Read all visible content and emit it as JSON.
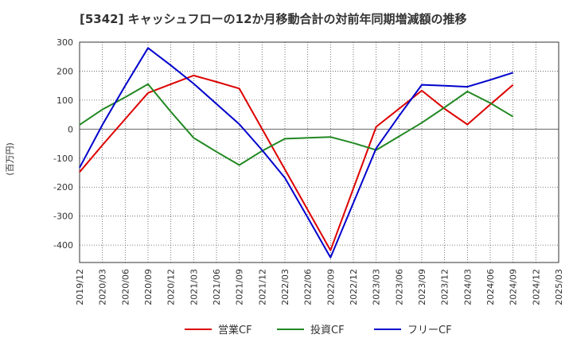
{
  "chart_data": {
    "type": "line",
    "title": "[5342]  キャッシュフローの12か月移動合計の対前年同期増減額の推移",
    "ylabel": "(百万円)",
    "xlabel": "",
    "ylim": [
      -460,
      300
    ],
    "yticks": [
      300,
      200,
      100,
      0,
      -100,
      -200,
      -300,
      -400
    ],
    "categories": [
      "2019/12",
      "2020/03",
      "2020/06",
      "2020/09",
      "2020/12",
      "2021/03",
      "2021/06",
      "2021/09",
      "2021/12",
      "2022/03",
      "2022/06",
      "2022/09",
      "2022/12",
      "2023/03",
      "2023/06",
      "2023/09",
      "2023/12",
      "2024/03",
      "2024/06",
      "2024/09",
      "2024/12",
      "2025/03"
    ],
    "legend_position": "bottom",
    "series": [
      {
        "name": "営業CF",
        "color": "#dd0000",
        "values": [
          -148,
          -55,
          35,
          125,
          155,
          185,
          163,
          140,
          null,
          null,
          null,
          -418,
          null,
          8,
          70,
          133,
          70,
          16,
          85,
          153,
          null,
          null
        ]
      },
      {
        "name": "投資CF",
        "color": "#228822",
        "values": [
          15,
          68,
          110,
          155,
          60,
          -30,
          -78,
          -124,
          -75,
          -33,
          -30,
          -27,
          -48,
          -72,
          -25,
          22,
          75,
          130,
          90,
          43,
          null,
          null
        ]
      },
      {
        "name": "フリーCF",
        "color": "#0000cc",
        "values": [
          -133,
          15,
          150,
          280,
          220,
          157,
          87,
          17,
          -72,
          -168,
          -305,
          -443,
          null,
          -66,
          45,
          153,
          150,
          146,
          170,
          195,
          null,
          null
        ]
      }
    ]
  }
}
